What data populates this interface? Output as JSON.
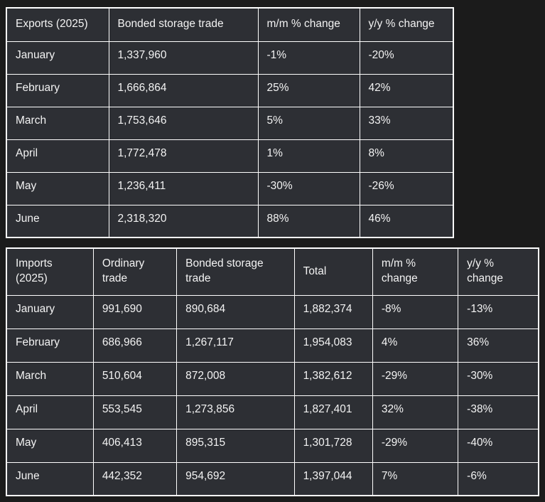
{
  "theme": {
    "page_bg": "#1b1b1b",
    "cell_bg": "#2d2f34",
    "border_color": "#ffffff",
    "text_color": "#f3f3f3"
  },
  "tables": [
    {
      "id": "exports",
      "headers": [
        "Exports (2025)",
        "Bonded storage trade",
        "m/m % change",
        "y/y % change"
      ],
      "rows": [
        [
          "January",
          "1,337,960",
          "-1%",
          "-20%"
        ],
        [
          "February",
          "1,666,864",
          "25%",
          "42%"
        ],
        [
          "March",
          "1,753,646",
          "5%",
          "33%"
        ],
        [
          "April",
          "1,772,478",
          "1%",
          "8%"
        ],
        [
          "May",
          "1,236,411",
          "-30%",
          "-26%"
        ],
        [
          "June",
          "2,318,320",
          "88%",
          "46%"
        ]
      ]
    },
    {
      "id": "imports",
      "headers": [
        "Imports (2025)",
        "Ordinary trade",
        "Bonded storage trade",
        "Total",
        "m/m % change",
        "y/y % change"
      ],
      "rows": [
        [
          "January",
          "991,690",
          "890,684",
          "1,882,374",
          "-8%",
          "-13%"
        ],
        [
          "February",
          "686,966",
          "1,267,117",
          "1,954,083",
          "4%",
          "36%"
        ],
        [
          "March",
          "510,604",
          "872,008",
          "1,382,612",
          "-29%",
          "-30%"
        ],
        [
          "April",
          "553,545",
          "1,273,856",
          "1,827,401",
          "32%",
          "-38%"
        ],
        [
          "May",
          "406,413",
          "895,315",
          "1,301,728",
          "-29%",
          "-40%"
        ],
        [
          "June",
          "442,352",
          "954,692",
          "1,397,044",
          "7%",
          "-6%"
        ]
      ]
    }
  ]
}
